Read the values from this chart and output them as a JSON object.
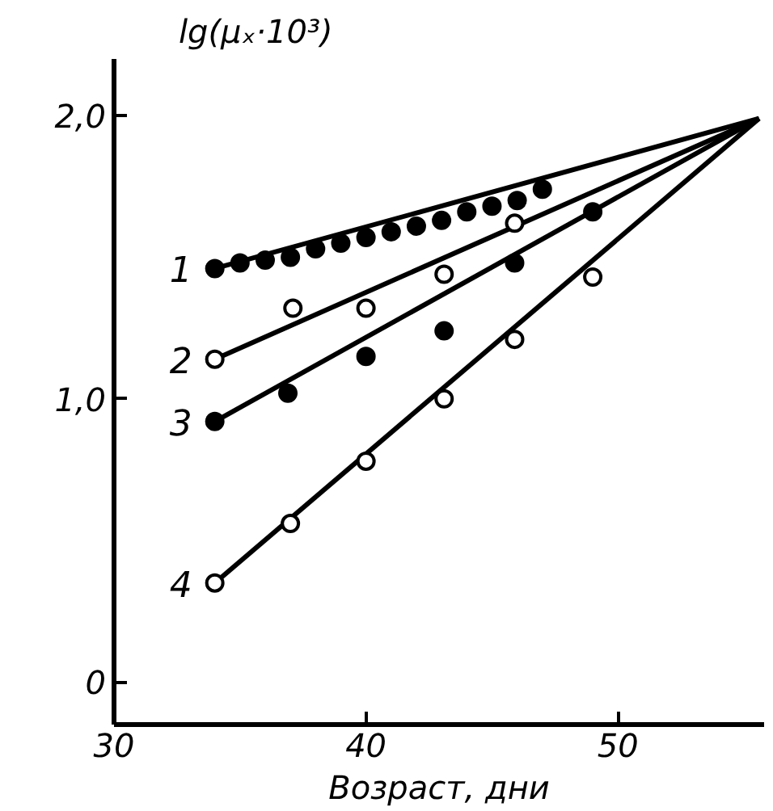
{
  "chart_data": {
    "type": "scatter",
    "xlabel": "Возраст, дни",
    "ylabel": "lg(μₓ·10³)",
    "xlim": [
      30,
      55.8
    ],
    "ylim": [
      -0.15,
      2.2
    ],
    "xticks": [
      30,
      40,
      50
    ],
    "yticks": [
      0,
      {
        "value": 1,
        "label": "1,0"
      },
      {
        "value": 2,
        "label": "2,0"
      }
    ],
    "grid": false,
    "marker": "circle",
    "series": [
      {
        "name": "1",
        "type": "line",
        "marker": "none",
        "color": "#000000",
        "x": [
          34,
          55.6
        ],
        "values": [
          1.46,
          1.99
        ]
      },
      {
        "name": "2",
        "type": "line",
        "marker": "none",
        "color": "#000000",
        "x": [
          34,
          55.6
        ],
        "values": [
          1.14,
          1.99
        ]
      },
      {
        "name": "3",
        "type": "line",
        "marker": "none",
        "color": "#000000",
        "x": [
          34,
          55.6
        ],
        "values": [
          0.92,
          1.99
        ]
      },
      {
        "name": "4",
        "type": "line",
        "marker": "none",
        "color": "#000000",
        "x": [
          34,
          55.6
        ],
        "values": [
          0.35,
          1.99
        ]
      },
      {
        "color": "#000000",
        "x": [
          34,
          35,
          36,
          37,
          38,
          39,
          40,
          41,
          42,
          43,
          44,
          45,
          46,
          47
        ],
        "values": [
          1.46,
          1.48,
          1.49,
          1.5,
          1.53,
          1.55,
          1.57,
          1.59,
          1.61,
          1.63,
          1.66,
          1.68,
          1.7,
          1.74
        ]
      },
      {
        "color": "#ffffff",
        "x": [
          34,
          37.1,
          40,
          43.1,
          45.9
        ],
        "values": [
          1.14,
          1.32,
          1.32,
          1.44,
          1.62
        ]
      },
      {
        "color": "#000000",
        "x": [
          34,
          36.9,
          40,
          43.1,
          45.9,
          49
        ],
        "values": [
          0.92,
          1.02,
          1.15,
          1.24,
          1.48,
          1.66
        ]
      },
      {
        "color": "#ffffff",
        "x": [
          34,
          37,
          40,
          43.1,
          45.9,
          49
        ],
        "values": [
          0.35,
          0.56,
          0.78,
          1.0,
          1.21,
          1.43
        ]
      }
    ]
  }
}
